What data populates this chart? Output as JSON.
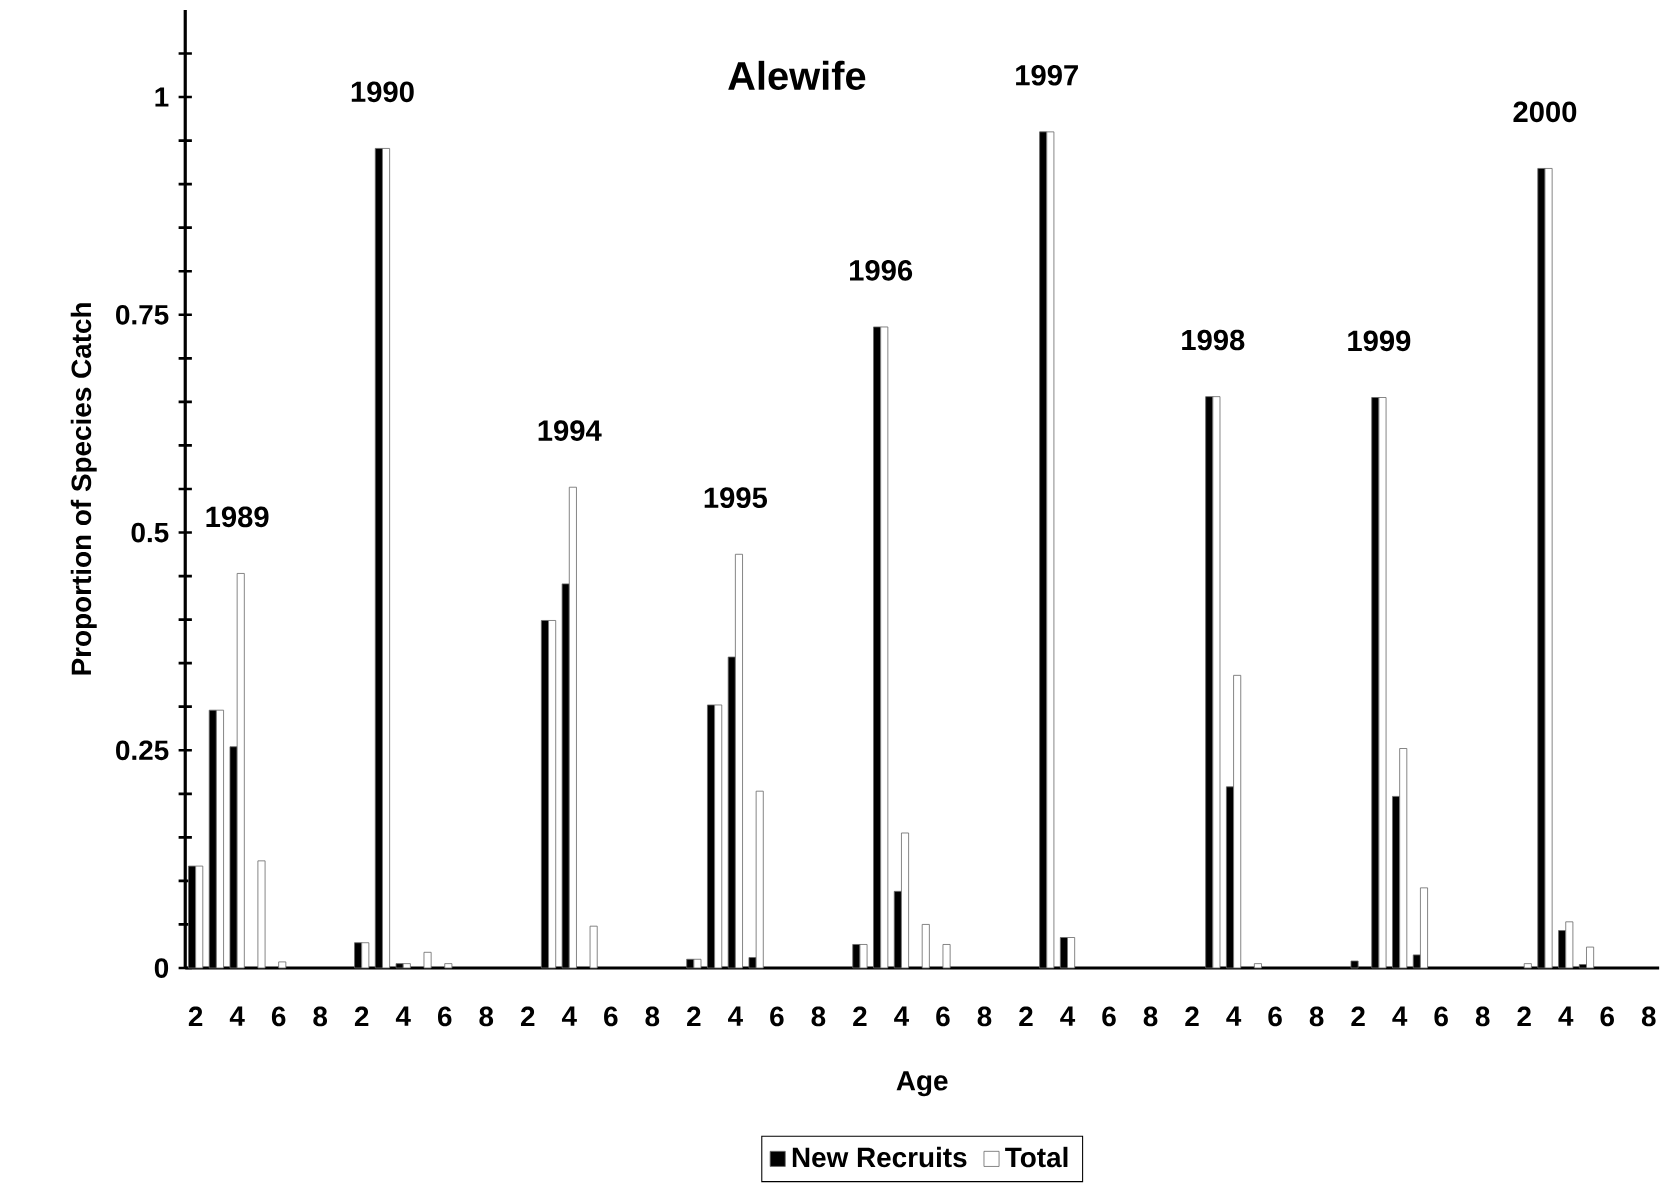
{
  "chart_data": {
    "type": "bar",
    "title": "Alewife",
    "xlabel": "Age",
    "ylabel": "Proportion of Species Catch",
    "categories": [
      "2",
      null,
      "4",
      null,
      "6",
      null,
      "8",
      null,
      "2",
      null,
      "4",
      null,
      "6",
      null,
      "8",
      null,
      "2",
      null,
      "4",
      null,
      "6",
      null,
      "8",
      null,
      "2",
      null,
      "4",
      null,
      "6",
      null,
      "8",
      null,
      "2",
      null,
      "4",
      null,
      "6",
      null,
      "8",
      null,
      "2",
      null,
      "4",
      null,
      "6",
      null,
      "8",
      null,
      "2",
      null,
      "4",
      null,
      "6",
      null,
      "8",
      null,
      "2",
      null,
      "4",
      null,
      "6",
      null,
      "8",
      null,
      "2",
      null,
      "4",
      null,
      "6",
      null,
      "8"
    ],
    "series": [
      {
        "name": "New Recruits",
        "color": "#000000",
        "values": [
          0.117,
          0.296,
          0.254,
          null,
          null,
          null,
          null,
          null,
          0.029,
          0.941,
          0.005,
          null,
          null,
          null,
          null,
          null,
          null,
          0.399,
          0.441,
          null,
          null,
          null,
          null,
          null,
          0.01,
          0.302,
          0.357,
          0.012,
          null,
          null,
          null,
          null,
          0.027,
          0.736,
          0.088,
          null,
          null,
          null,
          null,
          null,
          null,
          0.96,
          0.035,
          null,
          null,
          null,
          null,
          null,
          null,
          0.656,
          0.208,
          null,
          null,
          null,
          null,
          null,
          0.008,
          0.655,
          0.197,
          0.015,
          null,
          null,
          null,
          null,
          null,
          0.918,
          0.043,
          0.004,
          null,
          null,
          null
        ]
      },
      {
        "name": "Total",
        "color": "#ffffff",
        "values": [
          0.117,
          0.296,
          0.453,
          0.123,
          0.007,
          null,
          null,
          null,
          0.029,
          0.941,
          0.005,
          0.018,
          0.005,
          null,
          null,
          null,
          null,
          0.399,
          0.552,
          0.048,
          null,
          null,
          null,
          null,
          0.01,
          0.302,
          0.475,
          0.203,
          null,
          null,
          null,
          null,
          0.027,
          0.736,
          0.155,
          0.05,
          0.027,
          null,
          null,
          null,
          null,
          0.96,
          0.035,
          null,
          null,
          null,
          null,
          null,
          null,
          0.656,
          0.336,
          0.005,
          null,
          null,
          null,
          null,
          null,
          0.655,
          0.252,
          0.092,
          null,
          null,
          null,
          null,
          0.005,
          0.918,
          0.053,
          0.024,
          null,
          null,
          null
        ]
      }
    ],
    "ylim": [
      0,
      1.1
    ],
    "yticks": [
      0,
      {
        "value": 0.05,
        "label": null
      },
      {
        "value": 0.1,
        "label": null
      },
      {
        "value": 0.15,
        "label": null
      },
      {
        "value": 0.2,
        "label": null
      },
      0.25,
      {
        "value": 0.3,
        "label": null
      },
      {
        "value": 0.35,
        "label": null
      },
      {
        "value": 0.4,
        "label": null
      },
      {
        "value": 0.45,
        "label": null
      },
      0.5,
      {
        "value": 0.55,
        "label": null
      },
      {
        "value": 0.6,
        "label": null
      },
      {
        "value": 0.65,
        "label": null
      },
      {
        "value": 0.7,
        "label": null
      },
      0.75,
      {
        "value": 0.8,
        "label": null
      },
      {
        "value": 0.85,
        "label": null
      },
      {
        "value": 0.9,
        "label": null
      },
      {
        "value": 0.95,
        "label": null
      },
      1,
      {
        "value": 1.05,
        "label": null
      }
    ],
    "legend": "bottom",
    "annotations": [
      "1989",
      "1990",
      "1994",
      "1995",
      "1996",
      "1997",
      "1998",
      "1999",
      "2000"
    ]
  }
}
